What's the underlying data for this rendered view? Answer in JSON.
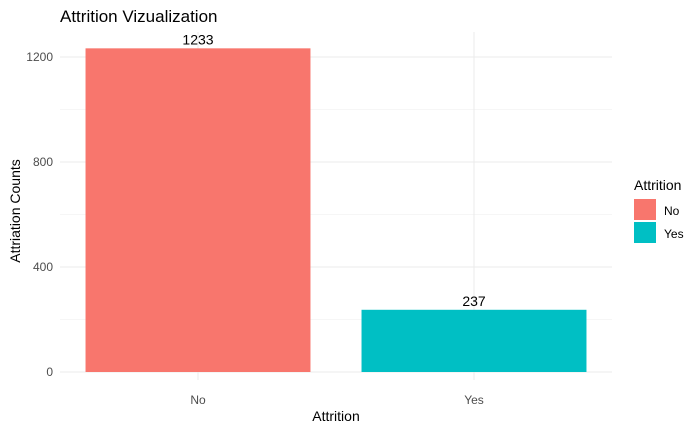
{
  "chart_data": {
    "type": "bar",
    "title": "Attrition Vizualization",
    "xlabel": "Attrition",
    "ylabel": "Attriation Counts",
    "categories": [
      "No",
      "Yes"
    ],
    "values": [
      1233,
      237
    ],
    "colors": [
      "#F8766D",
      "#00BFC4"
    ],
    "ylim": [
      0,
      1233
    ],
    "yticks": [
      0,
      400,
      800,
      1200
    ],
    "grid": true,
    "legend": {
      "title": "Attrition",
      "placement": "right",
      "items": [
        {
          "label": "No",
          "color": "#F8766D"
        },
        {
          "label": "Yes",
          "color": "#00BFC4"
        }
      ]
    }
  }
}
